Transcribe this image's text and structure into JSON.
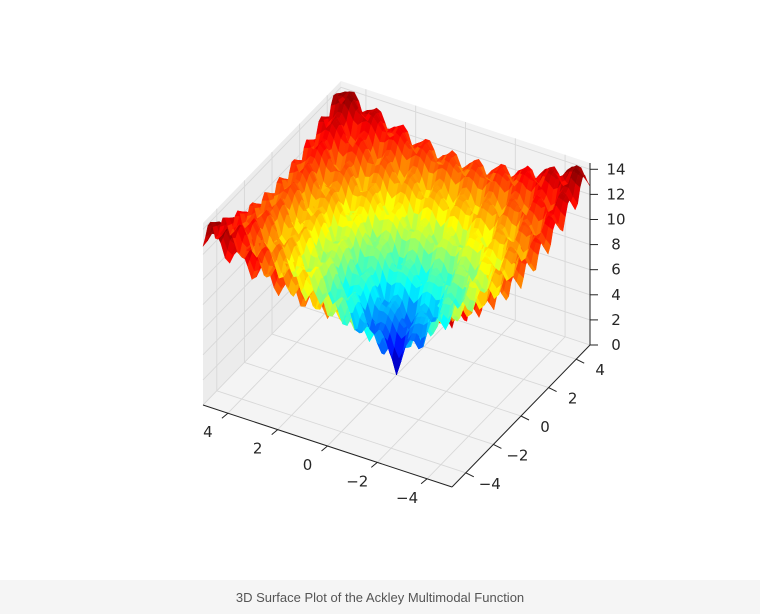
{
  "chart_data": {
    "type": "surface3d",
    "function": "Ackley",
    "colormap": "jet",
    "x": {
      "range": [
        -5,
        5
      ],
      "ticks": [
        -4,
        -2,
        0,
        2,
        4
      ],
      "tick_labels": [
        "−4",
        "−2",
        "0",
        "2",
        "4"
      ]
    },
    "y": {
      "range": [
        -5,
        5
      ],
      "ticks": [
        -4,
        -2,
        0,
        2,
        4
      ],
      "tick_labels": [
        "−4",
        "−2",
        "0",
        "2",
        "4"
      ]
    },
    "z": {
      "range": [
        0,
        14.5
      ],
      "ticks": [
        0,
        2,
        4,
        6,
        8,
        10,
        12,
        14
      ],
      "tick_labels": [
        "0",
        "2",
        "4",
        "6",
        "8",
        "10",
        "12",
        "14"
      ]
    },
    "surface_min": 0,
    "surface_max": 14.3,
    "grid": true
  },
  "caption": "3D Surface Plot of the Ackley Multimodal Function"
}
